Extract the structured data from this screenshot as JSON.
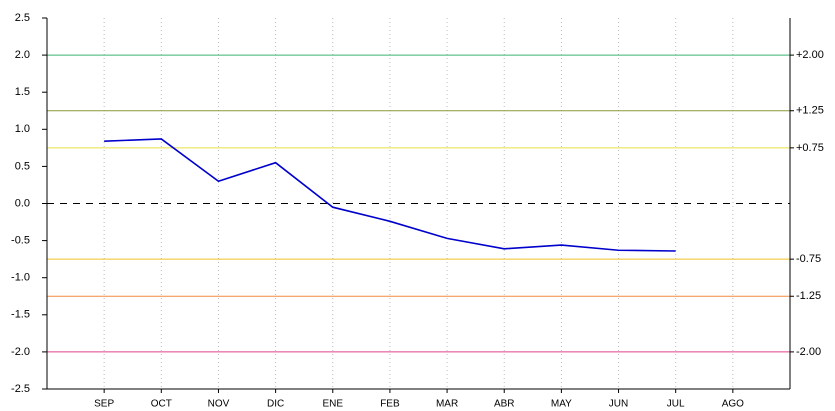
{
  "chart_data": {
    "type": "line",
    "categories": [
      "SEP",
      "OCT",
      "NOV",
      "DIC",
      "ENE",
      "FEB",
      "MAR",
      "ABR",
      "MAY",
      "JUN",
      "JUL",
      "AGO"
    ],
    "series": [
      {
        "color": "#0000cc",
        "values": [
          0.84,
          0.87,
          0.3,
          0.55,
          -0.05,
          -0.24,
          -0.47,
          -0.61,
          -0.56,
          -0.63,
          -0.64,
          null
        ]
      }
    ],
    "ylim": [
      -2.5,
      2.5
    ],
    "yticks": [
      {
        "value": 2.5,
        "label": "2.5"
      },
      {
        "value": 2,
        "label": "2.0"
      },
      {
        "value": 1.5,
        "label": "1.5"
      },
      {
        "value": 1,
        "label": "1.0"
      },
      {
        "value": 0.5,
        "label": "0.5"
      },
      {
        "value": 0,
        "label": "0.0"
      },
      {
        "value": -0.5,
        "label": "-0.5"
      },
      {
        "value": -1,
        "label": "-1.0"
      },
      {
        "value": -1.5,
        "label": "-1.5"
      },
      {
        "value": -2,
        "label": "-2.0"
      },
      {
        "value": -2.5,
        "label": "-2.5"
      }
    ],
    "y2lim": [
      -2.5,
      2.5
    ],
    "y2ticks": [
      {
        "value": 2,
        "label": "+2.00"
      },
      {
        "value": 1.25,
        "label": "+1.25"
      },
      {
        "value": 0.75,
        "label": "+0.75"
      },
      {
        "value": -0.75,
        "label": "-0.75"
      },
      {
        "value": -1.25,
        "label": "-1.25"
      },
      {
        "value": -2,
        "label": "-2.00"
      }
    ],
    "y2tick_colors": [
      "#3cb371",
      "#8a9a3a",
      "#e8e040",
      "#f0c020",
      "#f08a40",
      "#e0408a"
    ],
    "zero_line": true,
    "grid": true
  }
}
